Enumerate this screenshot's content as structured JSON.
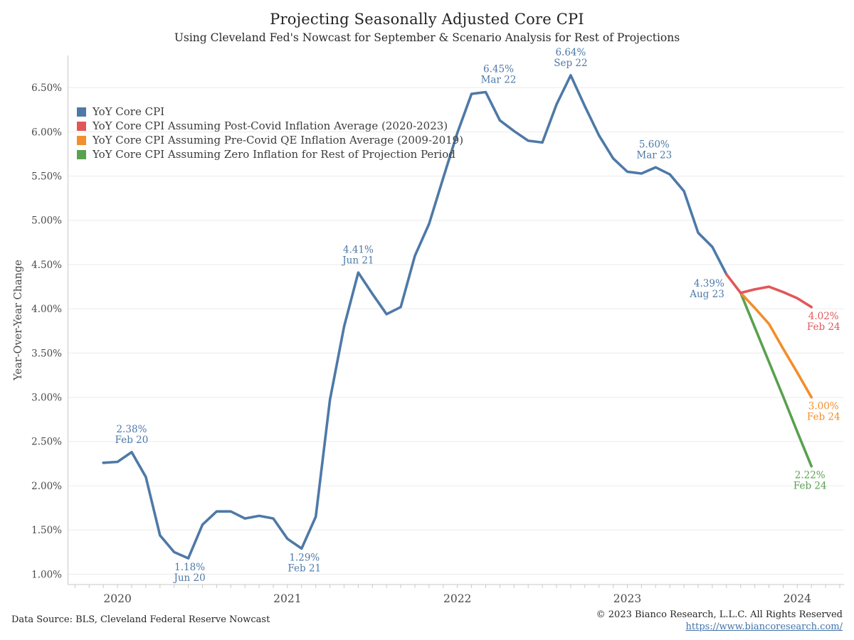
{
  "chart_data": {
    "type": "line",
    "title": "Projecting Seasonally Adjusted Core CPI",
    "subtitle": "Using Cleveland Fed's Nowcast for September & Scenario Analysis for Rest of Projections",
    "ylabel": "Year-Over-Year Change",
    "x_axis": {
      "unit": "month",
      "start": "Dec 2019",
      "tick_labels": [
        "2020",
        "2021",
        "2022",
        "2023",
        "2024"
      ],
      "tick_month_indexes": [
        1,
        13,
        25,
        37,
        49
      ]
    },
    "y_axis": {
      "range": [
        0.75,
        6.9
      ],
      "ticks": [
        {
          "label": "1.00%",
          "value": 1.0
        },
        {
          "label": "1.50%",
          "value": 1.5
        },
        {
          "label": "2.00%",
          "value": 2.0
        },
        {
          "label": "2.50%",
          "value": 2.5
        },
        {
          "label": "3.00%",
          "value": 3.0
        },
        {
          "label": "3.50%",
          "value": 3.5
        },
        {
          "label": "4.00%",
          "value": 4.0
        },
        {
          "label": "4.50%",
          "value": 4.5
        },
        {
          "label": "5.00%",
          "value": 5.0
        },
        {
          "label": "5.50%",
          "value": 5.5
        },
        {
          "label": "6.00%",
          "value": 6.0
        },
        {
          "label": "6.50%",
          "value": 6.5
        }
      ]
    },
    "legend": [
      {
        "id": "yoy-core-cpi",
        "label": "YoY Core CPI",
        "color": "#4e79a7"
      },
      {
        "id": "post-covid-avg",
        "label": "YoY Core CPI Assuming Post-Covid Inflation Average (2020-2023)",
        "color": "#e15759"
      },
      {
        "id": "pre-covid-qe-avg",
        "label": "YoY Core CPI Assuming Pre-Covid QE Inflation Average (2009-2019)",
        "color": "#f28e2b"
      },
      {
        "id": "zero-inflation",
        "label": "YoY Core CPI Assuming Zero Inflation for Rest of Projection Period",
        "color": "#59a14f"
      }
    ],
    "series": [
      {
        "id": "yoy-core-cpi",
        "label": "YoY Core CPI",
        "color": "#4e79a7",
        "start_month_index": 0,
        "values": [
          2.26,
          2.27,
          2.38,
          2.1,
          1.44,
          1.25,
          1.18,
          1.56,
          1.71,
          1.71,
          1.63,
          1.66,
          1.63,
          1.4,
          1.29,
          1.65,
          2.97,
          3.8,
          4.41,
          4.17,
          3.94,
          4.02,
          4.6,
          4.96,
          5.48,
          5.99,
          6.43,
          6.45,
          6.13,
          6.01,
          5.9,
          5.88,
          6.31,
          6.64,
          6.29,
          5.96,
          5.7,
          5.55,
          5.53,
          5.6,
          5.52,
          5.33,
          4.86,
          4.7,
          4.39
        ]
      },
      {
        "id": "post-covid-avg",
        "label": "YoY Core CPI Assuming Post-Covid Inflation Average (2020-2023)",
        "color": "#e15759",
        "start_month_index": 44,
        "values": [
          4.39,
          4.18,
          4.22,
          4.25,
          4.19,
          4.12,
          4.02
        ]
      },
      {
        "id": "pre-covid-qe-avg",
        "label": "YoY Core CPI Assuming Pre-Covid QE Inflation Average (2009-2019)",
        "color": "#f28e2b",
        "start_month_index": 45,
        "values": [
          4.18,
          4.01,
          3.83,
          3.55,
          3.28,
          3.0
        ]
      },
      {
        "id": "zero-inflation",
        "label": "YoY Core CPI Assuming Zero Inflation for Rest of Projection Period",
        "color": "#59a14f",
        "start_month_index": 45,
        "values": [
          4.18,
          3.79,
          3.4,
          3.01,
          2.61,
          2.22
        ]
      }
    ],
    "annotations": [
      {
        "text": "2.38%",
        "sub": "Feb 20",
        "color": "#4e79a7",
        "month_index": 2,
        "value": 2.38,
        "placement": "above",
        "dx": 0
      },
      {
        "text": "1.18%",
        "sub": "Jun 20",
        "color": "#4e79a7",
        "month_index": 6,
        "value": 1.18,
        "placement": "below",
        "dx": 2
      },
      {
        "text": "1.29%",
        "sub": "Feb 21",
        "color": "#4e79a7",
        "month_index": 14,
        "value": 1.29,
        "placement": "below",
        "dx": 4
      },
      {
        "text": "4.41%",
        "sub": "Jun 21",
        "color": "#4e79a7",
        "month_index": 18,
        "value": 4.41,
        "placement": "above",
        "dx": 0
      },
      {
        "text": "6.45%",
        "sub": "Mar 22",
        "color": "#4e79a7",
        "month_index": 27,
        "value": 6.45,
        "placement": "above",
        "dx": 18
      },
      {
        "text": "6.64%",
        "sub": "Sep 22",
        "color": "#4e79a7",
        "month_index": 33,
        "value": 6.64,
        "placement": "above",
        "dx": 0
      },
      {
        "text": "5.60%",
        "sub": "Mar 23",
        "color": "#4e79a7",
        "month_index": 39,
        "value": 5.6,
        "placement": "above",
        "dx": -2
      },
      {
        "text": "4.39%",
        "sub": "Aug 23",
        "color": "#4e79a7",
        "month_index": 44,
        "value": 4.39,
        "placement": "left",
        "dx": 0
      },
      {
        "text": "4.02%",
        "sub": "Feb 24",
        "color": "#e15759",
        "month_index": 50,
        "value": 4.02,
        "placement": "below",
        "dx": 17
      },
      {
        "text": "3.00%",
        "sub": "Feb 24",
        "color": "#f28e2b",
        "month_index": 50,
        "value": 3.0,
        "placement": "below",
        "dx": 17
      },
      {
        "text": "2.22%",
        "sub": "Feb 24",
        "color": "#59a14f",
        "month_index": 50,
        "value": 2.22,
        "placement": "below",
        "dx": -2
      }
    ],
    "grid": "horizontal-only",
    "legend_position": "top-left-inside"
  },
  "footer": {
    "data_source": "Data Source: BLS, Cleveland Federal Reserve Nowcast",
    "copyright": "© 2023 Bianco Research, L.L.C. All Rights Reserved",
    "link": "https://www.biancoresearch.com/"
  },
  "colors": {
    "grid": "#ebebeb",
    "spine": "#c9c9c9",
    "axis_text": "#4a4a4a",
    "legend_text": "#3c3c3c",
    "link": "#4273a8"
  }
}
